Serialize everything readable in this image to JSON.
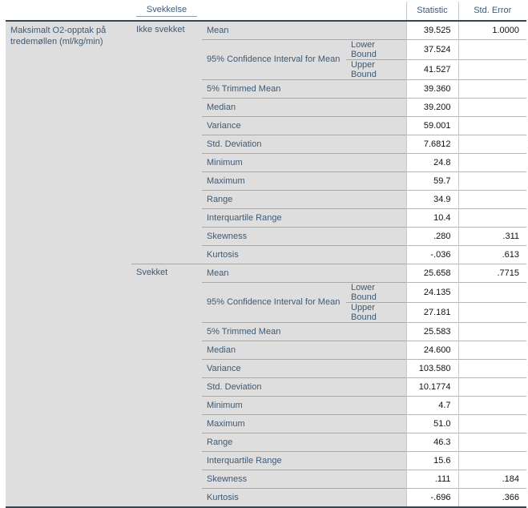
{
  "chart_data": {
    "type": "table",
    "title": "",
    "factor_header": "Svekkelse",
    "corner_header": "",
    "value_col_headers": {
      "statistic": "Statistic",
      "std_error": "Std. Error"
    },
    "variable_label": "Maksimalt O2-opptak på tredemøllen (ml/kg/min)",
    "groups": [
      {
        "name": "Ikke svekket",
        "rows": [
          {
            "label": "Mean",
            "sub": "",
            "statistic": "39.525",
            "std_error": "1.0000"
          },
          {
            "label": "95% Confidence Interval for Mean",
            "sub": "Lower Bound",
            "statistic": "37.524",
            "std_error": ""
          },
          {
            "label": "",
            "sub": "Upper Bound",
            "statistic": "41.527",
            "std_error": ""
          },
          {
            "label": "5% Trimmed Mean",
            "sub": "",
            "statistic": "39.360",
            "std_error": ""
          },
          {
            "label": "Median",
            "sub": "",
            "statistic": "39.200",
            "std_error": ""
          },
          {
            "label": "Variance",
            "sub": "",
            "statistic": "59.001",
            "std_error": ""
          },
          {
            "label": "Std. Deviation",
            "sub": "",
            "statistic": "7.6812",
            "std_error": ""
          },
          {
            "label": "Minimum",
            "sub": "",
            "statistic": "24.8",
            "std_error": ""
          },
          {
            "label": "Maximum",
            "sub": "",
            "statistic": "59.7",
            "std_error": ""
          },
          {
            "label": "Range",
            "sub": "",
            "statistic": "34.9",
            "std_error": ""
          },
          {
            "label": "Interquartile Range",
            "sub": "",
            "statistic": "10.4",
            "std_error": ""
          },
          {
            "label": "Skewness",
            "sub": "",
            "statistic": ".280",
            "std_error": ".311"
          },
          {
            "label": "Kurtosis",
            "sub": "",
            "statistic": "-.036",
            "std_error": ".613"
          }
        ]
      },
      {
        "name": "Svekket",
        "rows": [
          {
            "label": "Mean",
            "sub": "",
            "statistic": "25.658",
            "std_error": ".7715"
          },
          {
            "label": "95% Confidence Interval for Mean",
            "sub": "Lower Bound",
            "statistic": "24.135",
            "std_error": ""
          },
          {
            "label": "",
            "sub": "Upper Bound",
            "statistic": "27.181",
            "std_error": ""
          },
          {
            "label": "5% Trimmed Mean",
            "sub": "",
            "statistic": "25.583",
            "std_error": ""
          },
          {
            "label": "Median",
            "sub": "",
            "statistic": "24.600",
            "std_error": ""
          },
          {
            "label": "Variance",
            "sub": "",
            "statistic": "103.580",
            "std_error": ""
          },
          {
            "label": "Std. Deviation",
            "sub": "",
            "statistic": "10.1774",
            "std_error": ""
          },
          {
            "label": "Minimum",
            "sub": "",
            "statistic": "4.7",
            "std_error": ""
          },
          {
            "label": "Maximum",
            "sub": "",
            "statistic": "51.0",
            "std_error": ""
          },
          {
            "label": "Range",
            "sub": "",
            "statistic": "46.3",
            "std_error": ""
          },
          {
            "label": "Interquartile Range",
            "sub": "",
            "statistic": "15.6",
            "std_error": ""
          },
          {
            "label": "Skewness",
            "sub": "",
            "statistic": ".111",
            "std_error": ".184"
          },
          {
            "label": "Kurtosis",
            "sub": "",
            "statistic": "-.696",
            "std_error": ".366"
          }
        ]
      }
    ],
    "colors": {
      "label_text": "#3e5a74",
      "row_background": "#dedede",
      "heavy_rule": "#36454f",
      "light_rule": "#a8a8a8"
    }
  }
}
